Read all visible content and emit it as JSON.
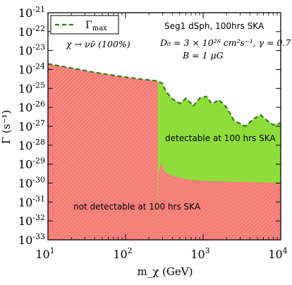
{
  "chart_data": {
    "type": "area",
    "x_scale": "log",
    "y_scale": "log",
    "xlim": [
      10,
      10000
    ],
    "ylim": [
      1e-33,
      1e-21
    ],
    "xlabel": "m_χ (GeV)",
    "ylabel": "Γ (s⁻¹)",
    "x_tick_labels": [
      {
        "value": 10,
        "base": "10",
        "exp": "1"
      },
      {
        "value": 100,
        "base": "10",
        "exp": "2"
      },
      {
        "value": 1000,
        "base": "10",
        "exp": "3"
      },
      {
        "value": 10000,
        "base": "10",
        "exp": "4"
      }
    ],
    "y_tick_labels": [
      {
        "value": 1e-21,
        "base": "10",
        "exp": "-21"
      },
      {
        "value": 1e-22,
        "base": "10",
        "exp": "-22"
      },
      {
        "value": 1e-23,
        "base": "10",
        "exp": "-23"
      },
      {
        "value": 1e-24,
        "base": "10",
        "exp": "-24"
      },
      {
        "value": 1e-25,
        "base": "10",
        "exp": "-25"
      },
      {
        "value": 1e-26,
        "base": "10",
        "exp": "-26"
      },
      {
        "value": 1e-27,
        "base": "10",
        "exp": "-27"
      },
      {
        "value": 1e-28,
        "base": "10",
        "exp": "-28"
      },
      {
        "value": 1e-29,
        "base": "10",
        "exp": "-29"
      },
      {
        "value": 1e-30,
        "base": "10",
        "exp": "-30"
      },
      {
        "value": 1e-31,
        "base": "10",
        "exp": "-31"
      },
      {
        "value": 1e-32,
        "base": "10",
        "exp": "-32"
      },
      {
        "value": 1e-33,
        "base": "10",
        "exp": "-33"
      }
    ],
    "series": [
      {
        "name": "Γ_max",
        "style": "dashed",
        "color": "#2e7d1a",
        "points": [
          [
            10,
            2e-24
          ],
          [
            20,
            1.2e-24
          ],
          [
            40,
            7e-25
          ],
          [
            80,
            4.5e-25
          ],
          [
            150,
            3.2e-25
          ],
          [
            250,
            2.5e-25
          ],
          [
            300,
            1.8e-25
          ],
          [
            330,
            7e-26
          ],
          [
            400,
            2.8e-26
          ],
          [
            500,
            1.6e-26
          ],
          [
            600,
            3e-26
          ],
          [
            750,
            1.2e-26
          ],
          [
            900,
            3e-26
          ],
          [
            1100,
            3.8e-26
          ],
          [
            1300,
            1.5e-26
          ],
          [
            1600,
            2.5e-26
          ],
          [
            2000,
            1e-26
          ],
          [
            2500,
            2e-27
          ],
          [
            3500,
            1e-27
          ],
          [
            4500,
            2.5e-27
          ],
          [
            5500,
            4e-27
          ],
          [
            7000,
            1.7e-27
          ],
          [
            8000,
            1.2e-27
          ],
          [
            9000,
            1.3e-27
          ],
          [
            10000,
            1.5e-27
          ]
        ]
      }
    ],
    "regions": [
      {
        "label": "not detectable at 100 hrs SKA",
        "color": "#f47b74",
        "description": "below Γ_max and below detection threshold"
      },
      {
        "label": "detectable at 100 hrs SKA",
        "color": "#8fdd3a",
        "description": "between threshold and Γ_max"
      }
    ],
    "detection_threshold": [
      [
        260,
        1e-33
      ],
      [
        265,
        3e-30
      ],
      [
        285,
        1.2e-29
      ],
      [
        320,
        4e-30
      ],
      [
        400,
        2.4e-30
      ],
      [
        600,
        1.6e-30
      ],
      [
        1000,
        1.3e-30
      ],
      [
        2000,
        1.2e-30
      ],
      [
        5000,
        1.1e-30
      ],
      [
        10000,
        1e-30
      ]
    ],
    "legend": {
      "placement": "top-left",
      "label_main": "Γ",
      "label_sub": "max"
    },
    "annotations": {
      "title": "Seg1 dSph, 100hrs SKA",
      "channel": "χ → νν̄ (100%)",
      "params_line1": "D₀ = 3 × 10²⁸ cm²s⁻¹, γ = 0.7",
      "params_line2": "B = 1 μG",
      "detectable": "detectable at 100 hrs SKA",
      "not_detectable": "not detectable at 100 hrs SKA"
    },
    "colors": {
      "not_detectable": "#f47b74",
      "detectable": "#8fdd3a",
      "gamma_max_line": "#2e7d1a"
    }
  }
}
